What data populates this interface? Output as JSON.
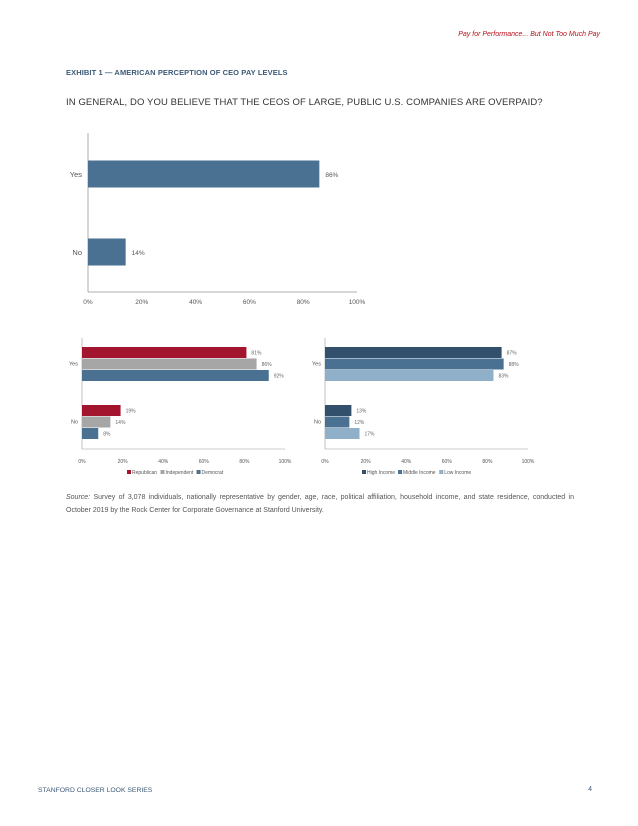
{
  "running_head": "Pay for Performance... But Not Too Much Pay",
  "exhibit": {
    "title": "EXHIBIT 1 — AMERICAN PERCEPTION OF CEO PAY LEVELS",
    "question": "IN GENERAL, DO YOU BELIEVE THAT THE CEOS OF LARGE, PUBLIC U.S. COMPANIES ARE OVERPAID?"
  },
  "colors": {
    "main_bar": "#4a7191",
    "republican": "#a3142e",
    "independent": "#a6a6a6",
    "democrat": "#4a7191",
    "high_income": "#32506b",
    "middle_income": "#4a7191",
    "low_income": "#8fb0c8",
    "axis": "#999999"
  },
  "chart_data": [
    {
      "type": "bar",
      "orientation": "horizontal",
      "categories": [
        "Yes",
        "No"
      ],
      "series": [
        {
          "name": "All",
          "values": [
            86,
            14
          ],
          "labels": [
            "86%",
            "14%"
          ]
        }
      ],
      "xlim": [
        0,
        100
      ],
      "ticks": [
        "0%",
        "20%",
        "40%",
        "60%",
        "80%",
        "100%"
      ],
      "title": "",
      "xlabel": "",
      "ylabel": "",
      "grid": false
    },
    {
      "type": "bar",
      "orientation": "horizontal",
      "categories": [
        "Yes",
        "No"
      ],
      "series": [
        {
          "name": "Republican",
          "values": [
            81,
            19
          ],
          "labels": [
            "81%",
            "19%"
          ]
        },
        {
          "name": "Independent",
          "values": [
            86,
            14
          ],
          "labels": [
            "86%",
            "14%"
          ]
        },
        {
          "name": "Democrat",
          "values": [
            92,
            8
          ],
          "labels": [
            "92%",
            "8%"
          ]
        }
      ],
      "xlim": [
        0,
        100
      ],
      "ticks": [
        "0%",
        "20%",
        "40%",
        "60%",
        "80%",
        "100%"
      ],
      "legend": "bottom",
      "grid": false
    },
    {
      "type": "bar",
      "orientation": "horizontal",
      "categories": [
        "Yes",
        "No"
      ],
      "series": [
        {
          "name": "High Income",
          "values": [
            87,
            13
          ],
          "labels": [
            "87%",
            "13%"
          ]
        },
        {
          "name": "Middle Income",
          "values": [
            88,
            12
          ],
          "labels": [
            "88%",
            "12%"
          ]
        },
        {
          "name": "Low Income",
          "values": [
            83,
            17
          ],
          "labels": [
            "83%",
            "17%"
          ]
        }
      ],
      "xlim": [
        0,
        100
      ],
      "ticks": [
        "0%",
        "20%",
        "40%",
        "60%",
        "80%",
        "100%"
      ],
      "legend": "bottom",
      "grid": false
    }
  ],
  "source": {
    "label": "Source:",
    "text": "Survey of 3,078 individuals, nationally representative by gender, age, race, political affiliation, household income, and state residence, conducted in October 2019 by the Rock Center for Corporate Governance at Stanford University."
  },
  "footer": {
    "series": "STANFORD CLOSER LOOK SERIES",
    "page": "4"
  }
}
